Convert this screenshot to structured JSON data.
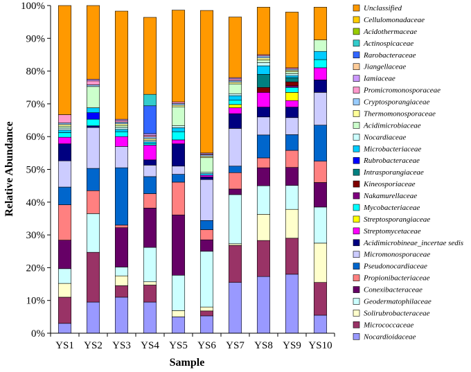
{
  "chart_data": {
    "type": "bar",
    "stacked": true,
    "title": "",
    "xlabel": "Sample",
    "ylabel": "Relative Abundance",
    "ylim": [
      0,
      100
    ],
    "y_ticks": [
      "0%",
      "10%",
      "20%",
      "30%",
      "40%",
      "50%",
      "60%",
      "70%",
      "80%",
      "90%",
      "100%"
    ],
    "grid": false,
    "legend_position": "right",
    "categories": [
      "YS1",
      "YS2",
      "YS3",
      "YS4",
      "YS5",
      "YS6",
      "YS7",
      "YS8",
      "YS9",
      "YS10"
    ],
    "series": [
      {
        "name": "Nocardioidaceae",
        "color": "#9999ff",
        "values": [
          3,
          9.5,
          11,
          9.5,
          5,
          5.3,
          15.5,
          17.3,
          18,
          5.5
        ]
      },
      {
        "name": "Micrococcaceae",
        "color": "#993366",
        "values": [
          8,
          15.2,
          3.5,
          5.2,
          0,
          1.5,
          11.3,
          11,
          11,
          10
        ]
      },
      {
        "name": "Solirubrobacteraceae",
        "color": "#ffffcc",
        "values": [
          4.2,
          0,
          3,
          1,
          1.9,
          1.2,
          0.5,
          8,
          8.8,
          12
        ]
      },
      {
        "name": "Geodermatophilaceae",
        "color": "#ccffff",
        "values": [
          4.5,
          11.8,
          2.7,
          10.5,
          10.8,
          17,
          15,
          8.7,
          7.3,
          11
        ]
      },
      {
        "name": "Conexibacteraceae",
        "color": "#660066",
        "values": [
          8.7,
          0,
          12,
          12,
          18.4,
          3.5,
          1.7,
          5.5,
          5.5,
          7.5
        ]
      },
      {
        "name": "Propionibacteriaceae",
        "color": "#ff8080",
        "values": [
          10.8,
          7,
          0.8,
          4.4,
          10,
          3.1,
          5,
          3,
          5.2,
          6.5
        ]
      },
      {
        "name": "Pseudonocardiaceae",
        "color": "#0066cc",
        "values": [
          5.4,
          6.8,
          17.5,
          5.2,
          2.4,
          2.8,
          2,
          7,
          4.8,
          11
        ]
      },
      {
        "name": "Micromonosporaceae",
        "color": "#ccccff",
        "values": [
          8,
          12.5,
          6.5,
          3.5,
          2.5,
          12.5,
          11.5,
          5.5,
          5.2,
          10
        ]
      },
      {
        "name": "Acidimicrobineae_incertae sedis",
        "color": "#000080",
        "values": [
          5.2,
          0.5,
          0,
          1.6,
          6.8,
          0.8,
          4.5,
          3,
          3.2,
          3.8
        ]
      },
      {
        "name": "Streptomycetaceae",
        "color": "#ff00ff",
        "values": [
          2,
          0,
          3,
          4.5,
          1.2,
          0.5,
          1.8,
          4.5,
          2,
          3.7
        ]
      },
      {
        "name": "Streptosporangiaceae",
        "color": "#ffff00",
        "values": [
          0,
          0,
          0,
          0,
          0,
          0,
          1,
          0,
          2.5,
          0
        ]
      },
      {
        "name": "Mycobacteriaceae",
        "color": "#00ffff",
        "values": [
          1.4,
          2,
          1.5,
          0.5,
          2.5,
          0,
          1.3,
          0,
          1.5,
          2.5
        ]
      },
      {
        "name": "Nakamurellaceae",
        "color": "#800080",
        "values": [
          0,
          0,
          0,
          0,
          0,
          0,
          0,
          0,
          0.5,
          0
        ]
      },
      {
        "name": "Kineosporiaceae",
        "color": "#800000",
        "values": [
          0,
          0,
          0,
          0,
          0,
          0,
          0,
          1.5,
          1.2,
          0
        ]
      },
      {
        "name": "Intrasporangiaceae",
        "color": "#008080",
        "values": [
          0,
          0,
          0,
          0,
          0,
          0,
          0,
          4,
          1.3,
          0
        ]
      },
      {
        "name": "Rubrobacteraceae",
        "color": "#0000ff",
        "values": [
          0,
          2,
          0,
          0,
          0,
          0,
          0,
          0,
          0,
          0
        ]
      },
      {
        "name": "Microbacteriaceae",
        "color": "#00ccff",
        "values": [
          0.8,
          1.5,
          0.7,
          0.5,
          1.2,
          0.5,
          1.4,
          2.6,
          0.6,
          2.5
        ]
      },
      {
        "name": "Nocardiaceae",
        "color": "#ccffff",
        "values": [
          0.6,
          0,
          0.6,
          0.5,
          0.6,
          0.4,
          0.6,
          1,
          0.6,
          0
        ]
      },
      {
        "name": "Acidimicrobiaceae",
        "color": "#ccffcc",
        "values": [
          0.6,
          6.5,
          0.6,
          0,
          5.8,
          4.5,
          3,
          0.8,
          0.6,
          3.5
        ]
      },
      {
        "name": "Thermomonosporaceae",
        "color": "#ffff99",
        "values": [
          0.5,
          0,
          0.5,
          0.5,
          0.5,
          0.4,
          0.5,
          0.6,
          0.4,
          0
        ]
      },
      {
        "name": "Cryptosporangiaceae",
        "color": "#99ccff",
        "values": [
          0.5,
          0.5,
          0.5,
          0.5,
          0.5,
          0.4,
          0.5,
          0.6,
          0.4,
          0
        ]
      },
      {
        "name": "Promicromonosporaceae",
        "color": "#ff99cc",
        "values": [
          2.5,
          1.2,
          0.5,
          0.5,
          0.5,
          0.3,
          0.5,
          0.4,
          0.4,
          0
        ]
      },
      {
        "name": "Iamiaceae",
        "color": "#cc99ff",
        "values": [
          0,
          0.5,
          0.4,
          0.5,
          0,
          0.3,
          0.4,
          0,
          0,
          0
        ]
      },
      {
        "name": "Jiangellaceae",
        "color": "#ffcc99",
        "values": [
          0,
          0,
          0,
          0,
          0,
          0,
          0,
          0,
          0,
          0
        ]
      },
      {
        "name": "Rarobacteraceae",
        "color": "#3366ff",
        "values": [
          0,
          0,
          0,
          8.5,
          0,
          0,
          0,
          0,
          0,
          0
        ]
      },
      {
        "name": "Actinospicaceae",
        "color": "#33cccc",
        "values": [
          0,
          0,
          0,
          3.5,
          0,
          0,
          0,
          0,
          0,
          0
        ]
      },
      {
        "name": "Acidothermaceae",
        "color": "#99cc00",
        "values": [
          0,
          0,
          0,
          0,
          0,
          0,
          0,
          0,
          0,
          0
        ]
      },
      {
        "name": "Cellulomonadaceae",
        "color": "#ffcc00",
        "values": [
          0,
          0,
          0,
          0,
          0,
          0,
          0,
          0,
          0,
          0
        ]
      },
      {
        "name": "Unclassified",
        "color": "#ff9900",
        "values": [
          34,
          23.5,
          33,
          23.5,
          28,
          43.5,
          18.5,
          14.5,
          17,
          10
        ]
      }
    ]
  }
}
